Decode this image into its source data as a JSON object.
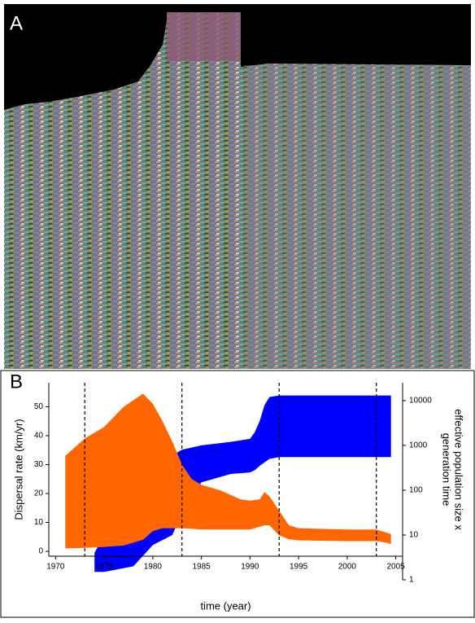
{
  "panel_labels": [
    "A",
    "B"
  ],
  "chart_data": {
    "type": "band",
    "xlabel": "time (year)",
    "ylabel": "Dispersal rate (km/yr)",
    "y2label": [
      "effective population size x",
      "generation time"
    ],
    "xlim": [
      1969.3,
      2005.7
    ],
    "xticks": [
      1970,
      1975,
      1980,
      1985,
      1990,
      1995,
      2000,
      2005
    ],
    "ylim": [
      -1.7,
      58.3
    ],
    "yticks": [
      0,
      10,
      20,
      30,
      40,
      50
    ],
    "y2lim": [
      1,
      25000
    ],
    "y2ticks": [
      1,
      10,
      100,
      1000,
      10000
    ],
    "y2scale": "log",
    "vlines": [
      1973,
      1983,
      1993,
      2003
    ],
    "series": [
      {
        "color": "#0000ff",
        "axis": "y2",
        "x": [
          1974,
          1975,
          1978,
          1980,
          1982,
          1983,
          1985,
          1988,
          1990,
          1990.5,
          1991,
          1991.5,
          1992,
          1993,
          2004.5
        ],
        "upper": [
          4,
          10,
          60,
          300,
          600,
          800,
          1000,
          1200,
          1400,
          2000,
          3500,
          8000,
          12000,
          13000,
          13000
        ],
        "lower": [
          1.5,
          1.5,
          2,
          6,
          10,
          30,
          150,
          230,
          250,
          280,
          350,
          420,
          500,
          550,
          550
        ]
      },
      {
        "color": "#ff6600",
        "axis": "y",
        "x": [
          1971,
          1973,
          1975,
          1977,
          1979,
          1980,
          1981,
          1982,
          1983,
          1984,
          1985,
          1987,
          1989,
          1990,
          1991,
          1991.5,
          1992,
          1993,
          1994,
          1995,
          2000,
          2003,
          2004,
          2004.5
        ],
        "upper": [
          33,
          39,
          43,
          50,
          54.5,
          51,
          45,
          38,
          30,
          25,
          23,
          21,
          18,
          17.5,
          18,
          20.5,
          19,
          14,
          9,
          8,
          7.5,
          7.5,
          6.5,
          6
        ],
        "lower": [
          1,
          1.2,
          1.5,
          2,
          4,
          7,
          8,
          8,
          8,
          7.8,
          7.5,
          7.5,
          7.5,
          7.5,
          8.5,
          9,
          9,
          5.5,
          4.2,
          3.8,
          3.5,
          3.5,
          3,
          2.5
        ]
      }
    ]
  }
}
